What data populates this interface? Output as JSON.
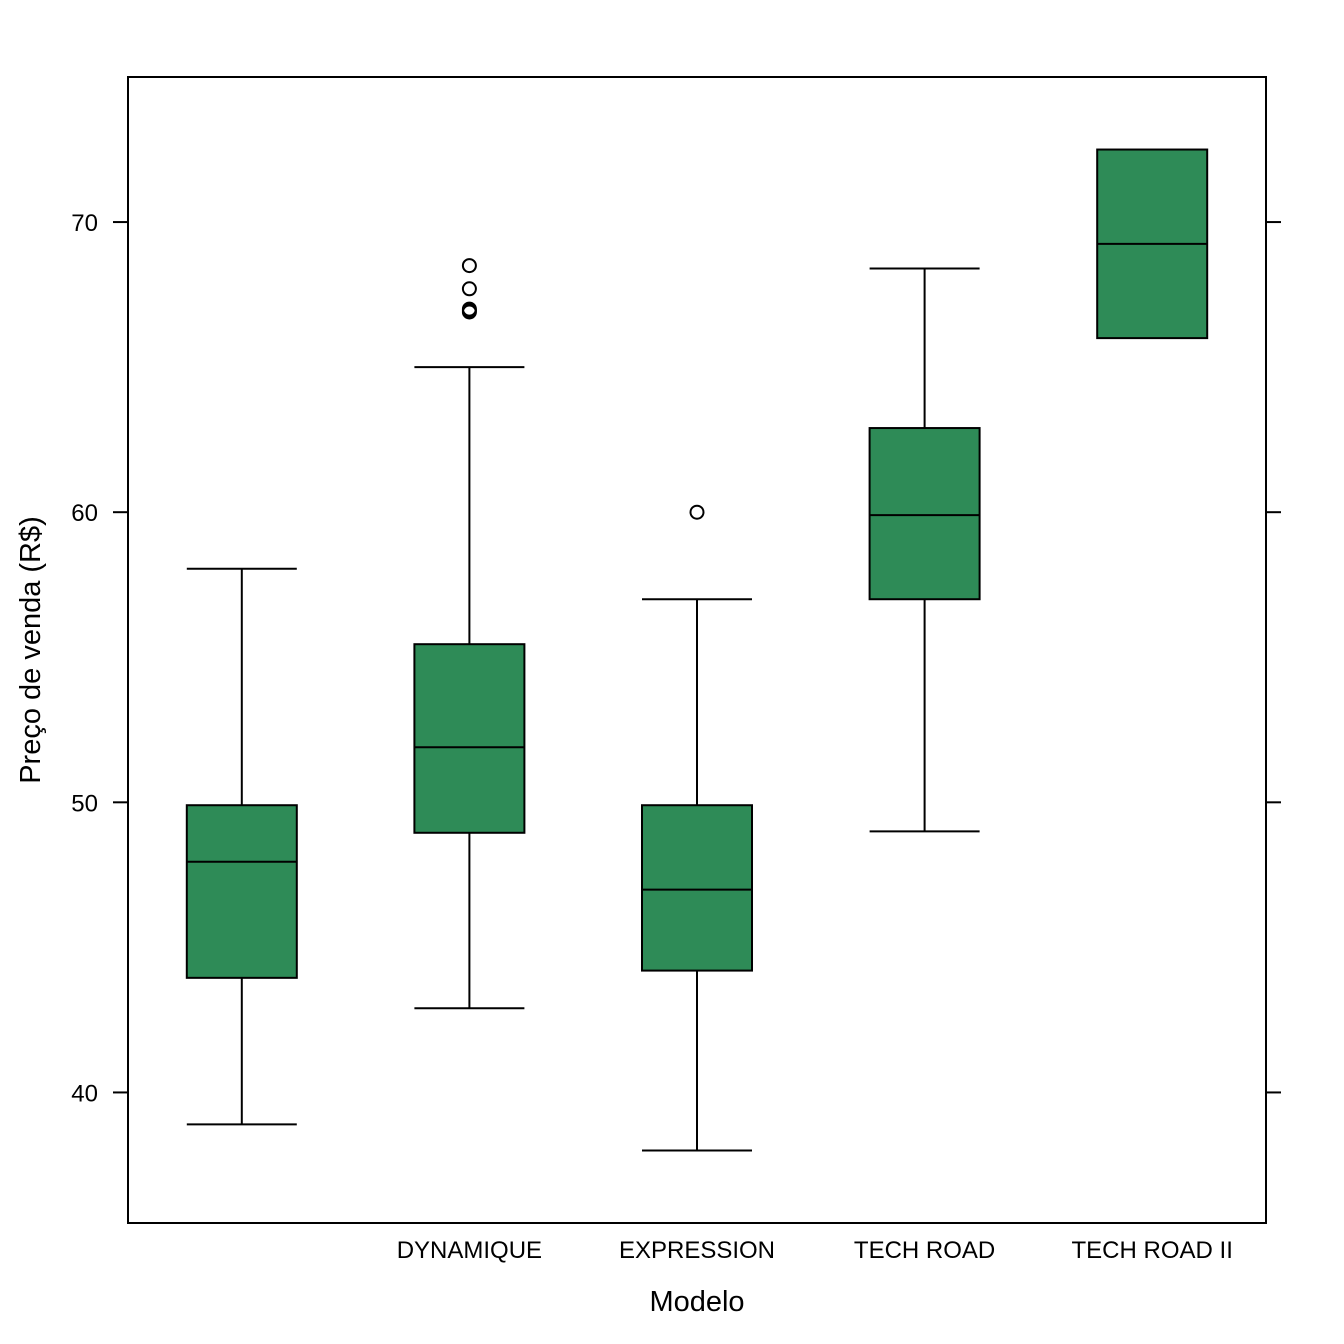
{
  "chart_data": {
    "type": "boxplot",
    "title": "",
    "xlabel": "Modelo",
    "ylabel": "Preço de venda (R$)",
    "ylim": [
      35.5,
      75
    ],
    "yticks": [
      40,
      50,
      60,
      70
    ],
    "grid": false,
    "box_color": "#2E8B57",
    "categories": [
      "",
      "DYNAMIQUE",
      "EXPRESSION",
      "TECH ROAD",
      "TECH ROAD II"
    ],
    "boxes": [
      {
        "category": "",
        "whisker_low": 38.9,
        "q1": 43.95,
        "median": 47.95,
        "q3": 49.9,
        "whisker_high": 58.05,
        "outliers": []
      },
      {
        "category": "DYNAMIQUE",
        "whisker_low": 42.9,
        "q1": 48.95,
        "median": 51.9,
        "q3": 55.45,
        "whisker_high": 65.0,
        "outliers": [
          66.9,
          66.95,
          67.0,
          67.7,
          68.5
        ]
      },
      {
        "category": "EXPRESSION",
        "whisker_low": 38.0,
        "q1": 44.2,
        "median": 46.99,
        "q3": 49.9,
        "whisker_high": 57.0,
        "outliers": [
          60.0
        ]
      },
      {
        "category": "TECH ROAD",
        "whisker_low": 49.0,
        "q1": 57.0,
        "median": 59.9,
        "q3": 62.9,
        "whisker_high": 68.4,
        "outliers": []
      },
      {
        "category": "TECH ROAD II",
        "whisker_low": 66.0,
        "q1": 66.0,
        "median": 69.25,
        "q3": 72.5,
        "whisker_high": 72.5,
        "outliers": []
      }
    ]
  }
}
